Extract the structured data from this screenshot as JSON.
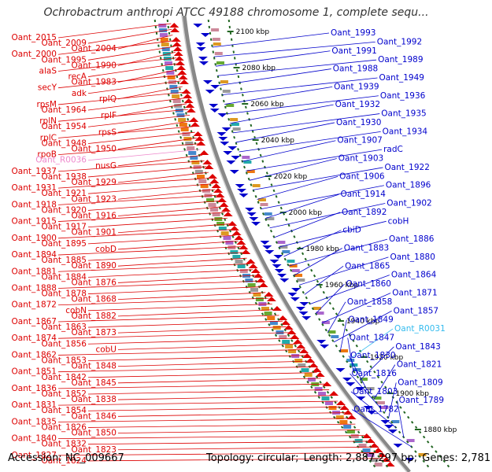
{
  "title": "Ochrobactrum anthropi ATCC 49188 chromosome 1, complete sequ...",
  "footer": {
    "accession": "Accession: NC_009667",
    "topology": "Topology: circular;",
    "length": "Length: 2,887,297 bp;",
    "genes": "Genes: 2,781"
  },
  "colors": {
    "forward": "#dd0000",
    "reverse": "#0000cc",
    "rna_forward": "#ee88cc",
    "rna_reverse": "#33bbee",
    "backbone": "#888888",
    "ticks": "#226622"
  },
  "ticks": [
    "2100 kbp",
    "2080 kbp",
    "2060 kbp",
    "2040 kbp",
    "2020 kbp",
    "2000 kbp",
    "1980 kbp",
    "1960 kbp",
    "1940 kbp",
    "1920 kbp",
    "1900 kbp",
    "1880 kbp"
  ],
  "left_labels": [
    "Oant_2015",
    "Oant_2009",
    "Oant_2004",
    "Oant_2000",
    "Oant_1995",
    "Oant_1990",
    "alaS",
    "recA",
    "Oant_1983",
    "secY",
    "adk",
    "rplQ",
    "rpsM",
    "Oant_1964",
    "rplF",
    "rplN",
    "Oant_1954",
    "rpsS",
    "rplC",
    "Oant_1948",
    "Oant_1950",
    "rpoB",
    "Oant_R0036",
    "nusG",
    "Oant_1937",
    "Oant_1938",
    "Oant_1929",
    "Oant_1931",
    "Oant_1921",
    "Oant_1923",
    "Oant_1918",
    "Oant_1920",
    "Oant_1916",
    "Oant_1915",
    "Oant_1917",
    "Oant_1901",
    "Oant_1900",
    "Oant_1895",
    "cobD",
    "Oant_1894",
    "Oant_1885",
    "Oant_1890",
    "Oant_1881",
    "Oant_1884",
    "Oant_1876",
    "Oant_1888",
    "Oant_1878",
    "Oant_1868",
    "Oant_1872",
    "cobN",
    "Oant_1882",
    "Oant_1867",
    "Oant_1863",
    "Oant_1873",
    "Oant_1874",
    "Oant_1856",
    "cobU",
    "Oant_1862",
    "Oant_1853",
    "Oant_1848",
    "Oant_1851",
    "Oant_1842",
    "Oant_1845",
    "Oant_1836",
    "Oant_1852",
    "Oant_1838",
    "Oant_1831",
    "Oant_1854",
    "Oant_1846",
    "Oant_1835",
    "Oant_1826",
    "Oant_1850",
    "Oant_1840",
    "Oant_1832",
    "Oant_1823",
    "Oant_1827",
    "Oant_1824"
  ],
  "right_labels": [
    "Oant_1993",
    "Oant_1992",
    "Oant_1991",
    "Oant_1989",
    "Oant_1988",
    "Oant_1949",
    "Oant_1939",
    "Oant_1936",
    "Oant_1932",
    "Oant_1935",
    "Oant_1930",
    "Oant_1934",
    "Oant_1907",
    "radC",
    "Oant_1903",
    "Oant_1922",
    "Oant_1906",
    "Oant_1896",
    "Oant_1914",
    "Oant_1902",
    "Oant_1892",
    "cobH",
    "cbiD",
    "Oant_1886",
    "Oant_1883",
    "Oant_1880",
    "Oant_1865",
    "Oant_1864",
    "Oant_1860",
    "Oant_1871",
    "Oant_1858",
    "Oant_1857",
    "Oant_1849",
    "Oant_R0031",
    "Oant_1847",
    "Oant_1843",
    "Oant_1830",
    "Oant_1821",
    "Oant_1816",
    "Oant_1809",
    "Oant_1803",
    "Oant_1789",
    "Oant_1782"
  ]
}
